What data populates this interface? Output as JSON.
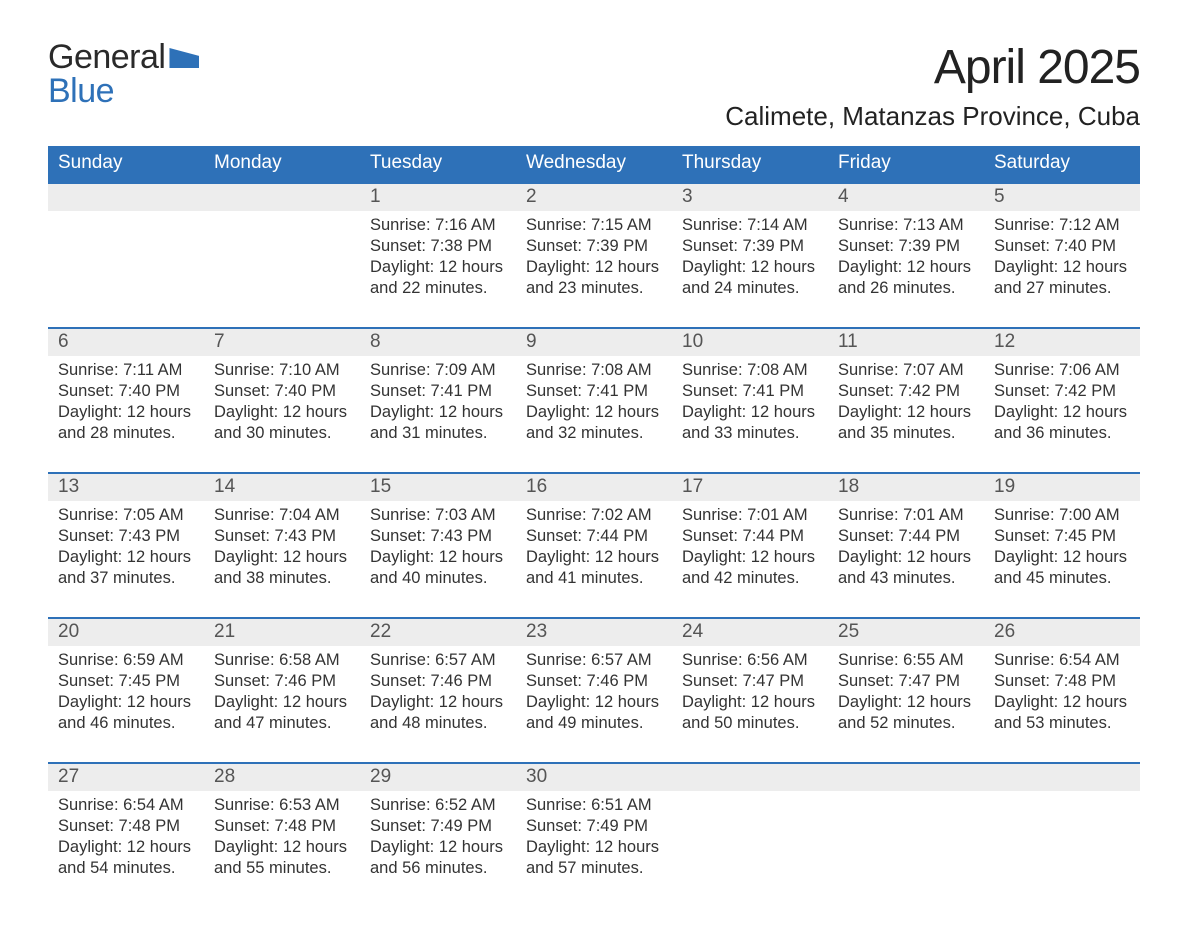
{
  "brand": {
    "word1": "General",
    "word2": "Blue"
  },
  "title": "April 2025",
  "location": "Calimete, Matanzas Province, Cuba",
  "colors": {
    "header_bg": "#2e71b8",
    "header_text": "#ffffff",
    "daynum_bg": "#ededed",
    "daynum_text": "#555555",
    "border": "#2e71b8",
    "body_text": "#333333",
    "page_bg": "#ffffff"
  },
  "weekdays": [
    "Sunday",
    "Monday",
    "Tuesday",
    "Wednesday",
    "Thursday",
    "Friday",
    "Saturday"
  ],
  "weeks": [
    [
      {
        "n": "",
        "sunrise": "",
        "sunset": "",
        "daylight": ""
      },
      {
        "n": "",
        "sunrise": "",
        "sunset": "",
        "daylight": ""
      },
      {
        "n": "1",
        "sunrise": "Sunrise: 7:16 AM",
        "sunset": "Sunset: 7:38 PM",
        "daylight": "Daylight: 12 hours and 22 minutes."
      },
      {
        "n": "2",
        "sunrise": "Sunrise: 7:15 AM",
        "sunset": "Sunset: 7:39 PM",
        "daylight": "Daylight: 12 hours and 23 minutes."
      },
      {
        "n": "3",
        "sunrise": "Sunrise: 7:14 AM",
        "sunset": "Sunset: 7:39 PM",
        "daylight": "Daylight: 12 hours and 24 minutes."
      },
      {
        "n": "4",
        "sunrise": "Sunrise: 7:13 AM",
        "sunset": "Sunset: 7:39 PM",
        "daylight": "Daylight: 12 hours and 26 minutes."
      },
      {
        "n": "5",
        "sunrise": "Sunrise: 7:12 AM",
        "sunset": "Sunset: 7:40 PM",
        "daylight": "Daylight: 12 hours and 27 minutes."
      }
    ],
    [
      {
        "n": "6",
        "sunrise": "Sunrise: 7:11 AM",
        "sunset": "Sunset: 7:40 PM",
        "daylight": "Daylight: 12 hours and 28 minutes."
      },
      {
        "n": "7",
        "sunrise": "Sunrise: 7:10 AM",
        "sunset": "Sunset: 7:40 PM",
        "daylight": "Daylight: 12 hours and 30 minutes."
      },
      {
        "n": "8",
        "sunrise": "Sunrise: 7:09 AM",
        "sunset": "Sunset: 7:41 PM",
        "daylight": "Daylight: 12 hours and 31 minutes."
      },
      {
        "n": "9",
        "sunrise": "Sunrise: 7:08 AM",
        "sunset": "Sunset: 7:41 PM",
        "daylight": "Daylight: 12 hours and 32 minutes."
      },
      {
        "n": "10",
        "sunrise": "Sunrise: 7:08 AM",
        "sunset": "Sunset: 7:41 PM",
        "daylight": "Daylight: 12 hours and 33 minutes."
      },
      {
        "n": "11",
        "sunrise": "Sunrise: 7:07 AM",
        "sunset": "Sunset: 7:42 PM",
        "daylight": "Daylight: 12 hours and 35 minutes."
      },
      {
        "n": "12",
        "sunrise": "Sunrise: 7:06 AM",
        "sunset": "Sunset: 7:42 PM",
        "daylight": "Daylight: 12 hours and 36 minutes."
      }
    ],
    [
      {
        "n": "13",
        "sunrise": "Sunrise: 7:05 AM",
        "sunset": "Sunset: 7:43 PM",
        "daylight": "Daylight: 12 hours and 37 minutes."
      },
      {
        "n": "14",
        "sunrise": "Sunrise: 7:04 AM",
        "sunset": "Sunset: 7:43 PM",
        "daylight": "Daylight: 12 hours and 38 minutes."
      },
      {
        "n": "15",
        "sunrise": "Sunrise: 7:03 AM",
        "sunset": "Sunset: 7:43 PM",
        "daylight": "Daylight: 12 hours and 40 minutes."
      },
      {
        "n": "16",
        "sunrise": "Sunrise: 7:02 AM",
        "sunset": "Sunset: 7:44 PM",
        "daylight": "Daylight: 12 hours and 41 minutes."
      },
      {
        "n": "17",
        "sunrise": "Sunrise: 7:01 AM",
        "sunset": "Sunset: 7:44 PM",
        "daylight": "Daylight: 12 hours and 42 minutes."
      },
      {
        "n": "18",
        "sunrise": "Sunrise: 7:01 AM",
        "sunset": "Sunset: 7:44 PM",
        "daylight": "Daylight: 12 hours and 43 minutes."
      },
      {
        "n": "19",
        "sunrise": "Sunrise: 7:00 AM",
        "sunset": "Sunset: 7:45 PM",
        "daylight": "Daylight: 12 hours and 45 minutes."
      }
    ],
    [
      {
        "n": "20",
        "sunrise": "Sunrise: 6:59 AM",
        "sunset": "Sunset: 7:45 PM",
        "daylight": "Daylight: 12 hours and 46 minutes."
      },
      {
        "n": "21",
        "sunrise": "Sunrise: 6:58 AM",
        "sunset": "Sunset: 7:46 PM",
        "daylight": "Daylight: 12 hours and 47 minutes."
      },
      {
        "n": "22",
        "sunrise": "Sunrise: 6:57 AM",
        "sunset": "Sunset: 7:46 PM",
        "daylight": "Daylight: 12 hours and 48 minutes."
      },
      {
        "n": "23",
        "sunrise": "Sunrise: 6:57 AM",
        "sunset": "Sunset: 7:46 PM",
        "daylight": "Daylight: 12 hours and 49 minutes."
      },
      {
        "n": "24",
        "sunrise": "Sunrise: 6:56 AM",
        "sunset": "Sunset: 7:47 PM",
        "daylight": "Daylight: 12 hours and 50 minutes."
      },
      {
        "n": "25",
        "sunrise": "Sunrise: 6:55 AM",
        "sunset": "Sunset: 7:47 PM",
        "daylight": "Daylight: 12 hours and 52 minutes."
      },
      {
        "n": "26",
        "sunrise": "Sunrise: 6:54 AM",
        "sunset": "Sunset: 7:48 PM",
        "daylight": "Daylight: 12 hours and 53 minutes."
      }
    ],
    [
      {
        "n": "27",
        "sunrise": "Sunrise: 6:54 AM",
        "sunset": "Sunset: 7:48 PM",
        "daylight": "Daylight: 12 hours and 54 minutes."
      },
      {
        "n": "28",
        "sunrise": "Sunrise: 6:53 AM",
        "sunset": "Sunset: 7:48 PM",
        "daylight": "Daylight: 12 hours and 55 minutes."
      },
      {
        "n": "29",
        "sunrise": "Sunrise: 6:52 AM",
        "sunset": "Sunset: 7:49 PM",
        "daylight": "Daylight: 12 hours and 56 minutes."
      },
      {
        "n": "30",
        "sunrise": "Sunrise: 6:51 AM",
        "sunset": "Sunset: 7:49 PM",
        "daylight": "Daylight: 12 hours and 57 minutes."
      },
      {
        "n": "",
        "sunrise": "",
        "sunset": "",
        "daylight": ""
      },
      {
        "n": "",
        "sunrise": "",
        "sunset": "",
        "daylight": ""
      },
      {
        "n": "",
        "sunrise": "",
        "sunset": "",
        "daylight": ""
      }
    ]
  ]
}
